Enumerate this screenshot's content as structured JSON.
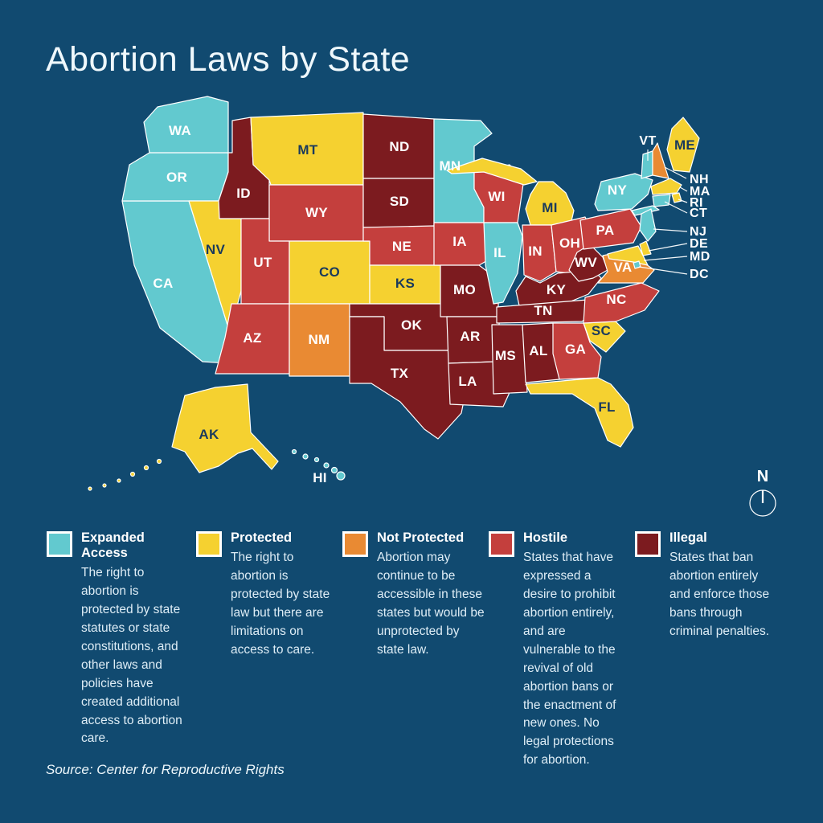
{
  "title": "Abortion Laws by State",
  "source": "Source: Center for Reproductive Rights",
  "compass": {
    "label": "N"
  },
  "colors": {
    "background": "#114A70",
    "border": "#FFFFFF",
    "label_light": "#FFFFFF",
    "label_dark": "#1A3A5C"
  },
  "legend": [
    {
      "key": "expanded",
      "label": "Expanded Access",
      "color": "#62C9CF",
      "description": "The right to abortion is protected by state statutes or state constitutions, and other laws and policies have created additional access to abortion care."
    },
    {
      "key": "protected",
      "label": "Protected",
      "color": "#F5D130",
      "description": "The right to abortion is protected by state law but there are limitations on access to care."
    },
    {
      "key": "not_protected",
      "label": "Not Protected",
      "color": "#E98A33",
      "description": "Abortion may continue to be accessible in these states but would be unprotected by state law."
    },
    {
      "key": "hostile",
      "label": "Hostile",
      "color": "#C43F3D",
      "description": "States that have expressed a desire to prohibit abortion entirely, and are vulnerable to the revival of old abortion bans or the enactment of new ones. No legal protections for abortion."
    },
    {
      "key": "illegal",
      "label": "Illegal",
      "color": "#7C1B1F",
      "description": "States that ban abortion entirely and enforce those bans through criminal penalties."
    }
  ],
  "map": {
    "states": [
      {
        "code": "WA",
        "category": "expanded"
      },
      {
        "code": "OR",
        "category": "expanded"
      },
      {
        "code": "CA",
        "category": "expanded"
      },
      {
        "code": "NV",
        "category": "protected"
      },
      {
        "code": "ID",
        "category": "illegal"
      },
      {
        "code": "MT",
        "category": "protected"
      },
      {
        "code": "WY",
        "category": "hostile"
      },
      {
        "code": "UT",
        "category": "hostile"
      },
      {
        "code": "CO",
        "category": "protected"
      },
      {
        "code": "AZ",
        "category": "hostile"
      },
      {
        "code": "NM",
        "category": "not_protected"
      },
      {
        "code": "ND",
        "category": "illegal"
      },
      {
        "code": "SD",
        "category": "illegal"
      },
      {
        "code": "NE",
        "category": "hostile"
      },
      {
        "code": "KS",
        "category": "protected"
      },
      {
        "code": "OK",
        "category": "illegal"
      },
      {
        "code": "TX",
        "category": "illegal"
      },
      {
        "code": "MN",
        "category": "expanded"
      },
      {
        "code": "IA",
        "category": "hostile"
      },
      {
        "code": "MO",
        "category": "illegal"
      },
      {
        "code": "AR",
        "category": "illegal"
      },
      {
        "code": "LA",
        "category": "illegal"
      },
      {
        "code": "WI",
        "category": "hostile"
      },
      {
        "code": "IL",
        "category": "expanded"
      },
      {
        "code": "MI",
        "category": "protected"
      },
      {
        "code": "IN",
        "category": "hostile"
      },
      {
        "code": "OH",
        "category": "hostile"
      },
      {
        "code": "KY",
        "category": "illegal"
      },
      {
        "code": "TN",
        "category": "illegal"
      },
      {
        "code": "WV",
        "category": "illegal"
      },
      {
        "code": "VA",
        "category": "not_protected"
      },
      {
        "code": "NC",
        "category": "hostile"
      },
      {
        "code": "SC",
        "category": "protected"
      },
      {
        "code": "GA",
        "category": "hostile"
      },
      {
        "code": "AL",
        "category": "illegal"
      },
      {
        "code": "MS",
        "category": "illegal"
      },
      {
        "code": "FL",
        "category": "protected"
      },
      {
        "code": "PA",
        "category": "hostile"
      },
      {
        "code": "NY",
        "category": "expanded"
      },
      {
        "code": "VT",
        "category": "expanded"
      },
      {
        "code": "NH",
        "category": "not_protected"
      },
      {
        "code": "ME",
        "category": "protected"
      },
      {
        "code": "MA",
        "category": "protected"
      },
      {
        "code": "RI",
        "category": "protected"
      },
      {
        "code": "CT",
        "category": "expanded"
      },
      {
        "code": "NJ",
        "category": "expanded"
      },
      {
        "code": "DE",
        "category": "protected"
      },
      {
        "code": "MD",
        "category": "protected"
      },
      {
        "code": "DC",
        "category": "expanded"
      },
      {
        "code": "AK",
        "category": "protected"
      },
      {
        "code": "HI",
        "category": "expanded"
      }
    ],
    "callouts": [
      "VT",
      "NH",
      "MA",
      "RI",
      "CT",
      "NJ",
      "DE",
      "MD",
      "DC"
    ]
  }
}
